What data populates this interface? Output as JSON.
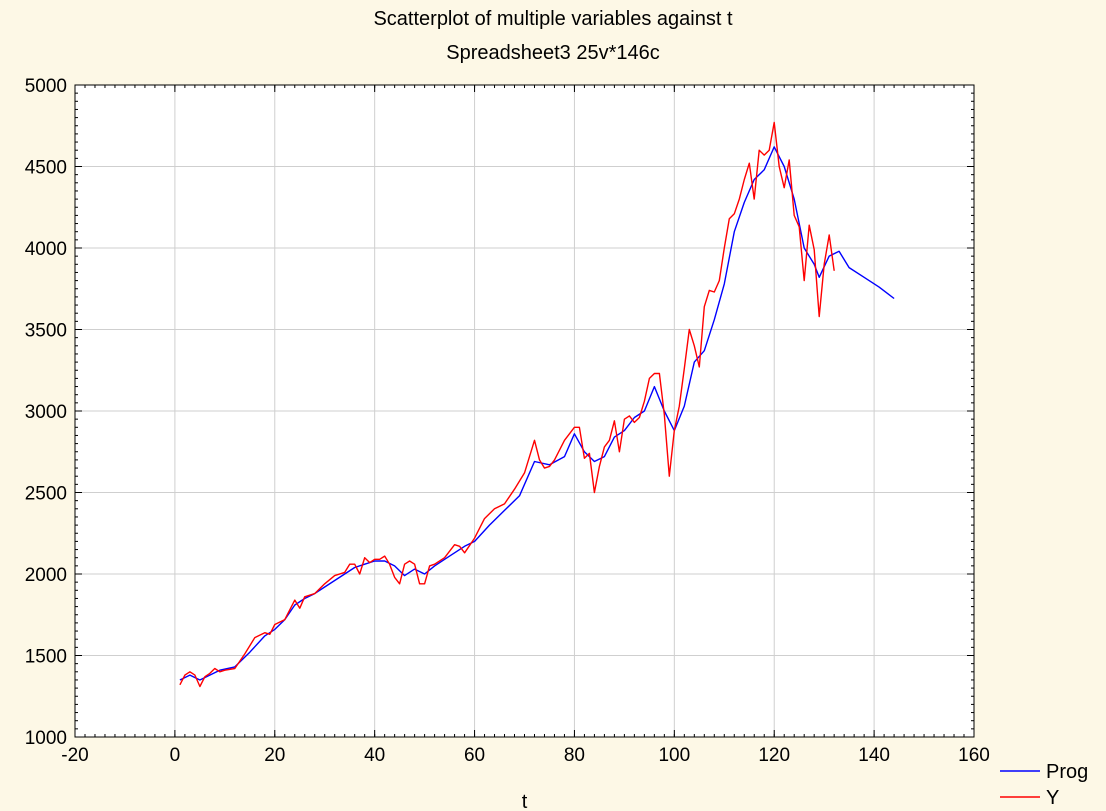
{
  "chart_data": {
    "type": "line",
    "title": "Scatterplot of multiple variables against t",
    "subtitle": "Spreadsheet3 25v*146c",
    "xlabel": "t",
    "ylabel": "",
    "xlim": [
      -20,
      160
    ],
    "ylim": [
      1000,
      5000
    ],
    "xticks": [
      -20,
      0,
      20,
      40,
      60,
      80,
      100,
      120,
      140,
      160
    ],
    "yticks": [
      1000,
      1500,
      2000,
      2500,
      3000,
      3500,
      4000,
      4500,
      5000
    ],
    "grid": true,
    "legend_position": "bottom-right",
    "series": [
      {
        "name": "Prog",
        "color": "#0000ff",
        "x": [
          1,
          3,
          5,
          7,
          9,
          12,
          15,
          18,
          20,
          22,
          24,
          26,
          28,
          30,
          32,
          34,
          36,
          38,
          40,
          42,
          44,
          46,
          48,
          50,
          52,
          55,
          58,
          60,
          63,
          66,
          69,
          72,
          75,
          78,
          80,
          82,
          84,
          86,
          88,
          90,
          92,
          94,
          96,
          98,
          100,
          102,
          104,
          106,
          108,
          110,
          112,
          114,
          116,
          118,
          120,
          122,
          124,
          126,
          128,
          129,
          131,
          133,
          135,
          138,
          141,
          144
        ],
        "values": [
          1350,
          1380,
          1350,
          1380,
          1410,
          1430,
          1520,
          1620,
          1660,
          1720,
          1810,
          1850,
          1880,
          1920,
          1960,
          2000,
          2040,
          2060,
          2080,
          2080,
          2050,
          1990,
          2030,
          2000,
          2050,
          2110,
          2170,
          2200,
          2300,
          2390,
          2480,
          2690,
          2670,
          2720,
          2860,
          2750,
          2690,
          2720,
          2840,
          2880,
          2960,
          3000,
          3150,
          3000,
          2880,
          3030,
          3300,
          3370,
          3560,
          3780,
          4100,
          4280,
          4420,
          4480,
          4620,
          4500,
          4300,
          4000,
          3900,
          3820,
          3950,
          3980,
          3880,
          3820,
          3760,
          3690
        ]
      },
      {
        "name": "Y",
        "color": "#ff0000",
        "x": [
          1,
          2,
          3,
          4,
          5,
          6,
          7,
          8,
          9,
          10,
          12,
          14,
          16,
          18,
          19,
          20,
          22,
          24,
          25,
          26,
          28,
          30,
          32,
          34,
          35,
          36,
          37,
          38,
          39,
          40,
          41,
          42,
          43,
          44,
          45,
          46,
          47,
          48,
          49,
          50,
          51,
          52,
          54,
          56,
          57,
          58,
          60,
          62,
          64,
          66,
          68,
          70,
          72,
          73,
          74,
          75,
          76,
          78,
          80,
          81,
          82,
          83,
          84,
          85,
          86,
          87,
          88,
          89,
          90,
          91,
          92,
          93,
          94,
          95,
          96,
          97,
          98,
          99,
          100,
          101,
          102,
          103,
          104,
          105,
          106,
          107,
          108,
          109,
          110,
          111,
          112,
          113,
          114,
          115,
          116,
          117,
          118,
          119,
          120,
          121,
          122,
          123,
          124,
          125,
          126,
          127,
          128,
          129,
          130,
          131,
          132
        ],
        "values": [
          1320,
          1380,
          1400,
          1380,
          1310,
          1370,
          1390,
          1420,
          1400,
          1410,
          1420,
          1510,
          1610,
          1640,
          1630,
          1690,
          1720,
          1840,
          1790,
          1860,
          1880,
          1940,
          1990,
          2010,
          2060,
          2060,
          2000,
          2100,
          2070,
          2090,
          2090,
          2110,
          2060,
          1980,
          1940,
          2060,
          2080,
          2060,
          1940,
          1940,
          2050,
          2060,
          2100,
          2180,
          2170,
          2130,
          2220,
          2340,
          2400,
          2430,
          2520,
          2620,
          2820,
          2700,
          2650,
          2660,
          2700,
          2820,
          2900,
          2900,
          2710,
          2740,
          2500,
          2660,
          2780,
          2820,
          2940,
          2750,
          2950,
          2970,
          2930,
          2960,
          3060,
          3200,
          3230,
          3230,
          2980,
          2600,
          2880,
          3030,
          3260,
          3500,
          3400,
          3270,
          3640,
          3740,
          3730,
          3800,
          4000,
          4180,
          4210,
          4300,
          4420,
          4520,
          4300,
          4600,
          4570,
          4600,
          4770,
          4500,
          4370,
          4540,
          4200,
          4130,
          3800,
          4140,
          3990,
          3580,
          3900,
          4080,
          3860
        ]
      }
    ]
  }
}
